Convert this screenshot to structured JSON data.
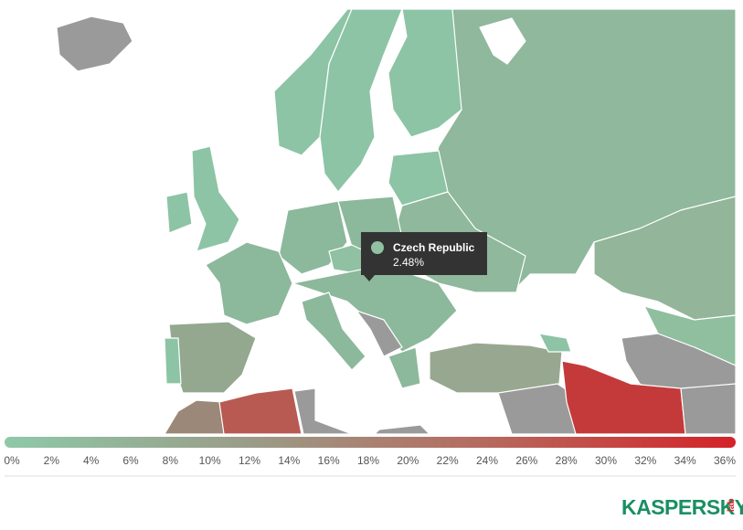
{
  "tooltip": {
    "country": "Czech Republic",
    "value": "2.48%",
    "color": "#8fc1a2"
  },
  "legend": {
    "range": [
      0,
      36
    ],
    "gradient": [
      "#8ec9a8",
      "#9a9c88",
      "#b7685d",
      "#d42228"
    ],
    "ticks": [
      {
        "value": 0,
        "label": "0%"
      },
      {
        "value": 2,
        "label": "2%"
      },
      {
        "value": 4,
        "label": "4%"
      },
      {
        "value": 6,
        "label": "6%"
      },
      {
        "value": 8,
        "label": "8%"
      },
      {
        "value": 10,
        "label": "10%"
      },
      {
        "value": 12,
        "label": "12%"
      },
      {
        "value": 14,
        "label": "14%"
      },
      {
        "value": 16,
        "label": "16%"
      },
      {
        "value": 18,
        "label": "18%"
      },
      {
        "value": 20,
        "label": "20%"
      },
      {
        "value": 22,
        "label": "22%"
      },
      {
        "value": 24,
        "label": "24%"
      },
      {
        "value": 26,
        "label": "26%"
      },
      {
        "value": 28,
        "label": "28%"
      },
      {
        "value": 30,
        "label": "30%"
      },
      {
        "value": 32,
        "label": "32%"
      },
      {
        "value": 34,
        "label": "34%"
      },
      {
        "value": 36,
        "label": "36%"
      }
    ]
  },
  "brand": {
    "name": "KASPERSKY",
    "sub": "lab"
  }
}
